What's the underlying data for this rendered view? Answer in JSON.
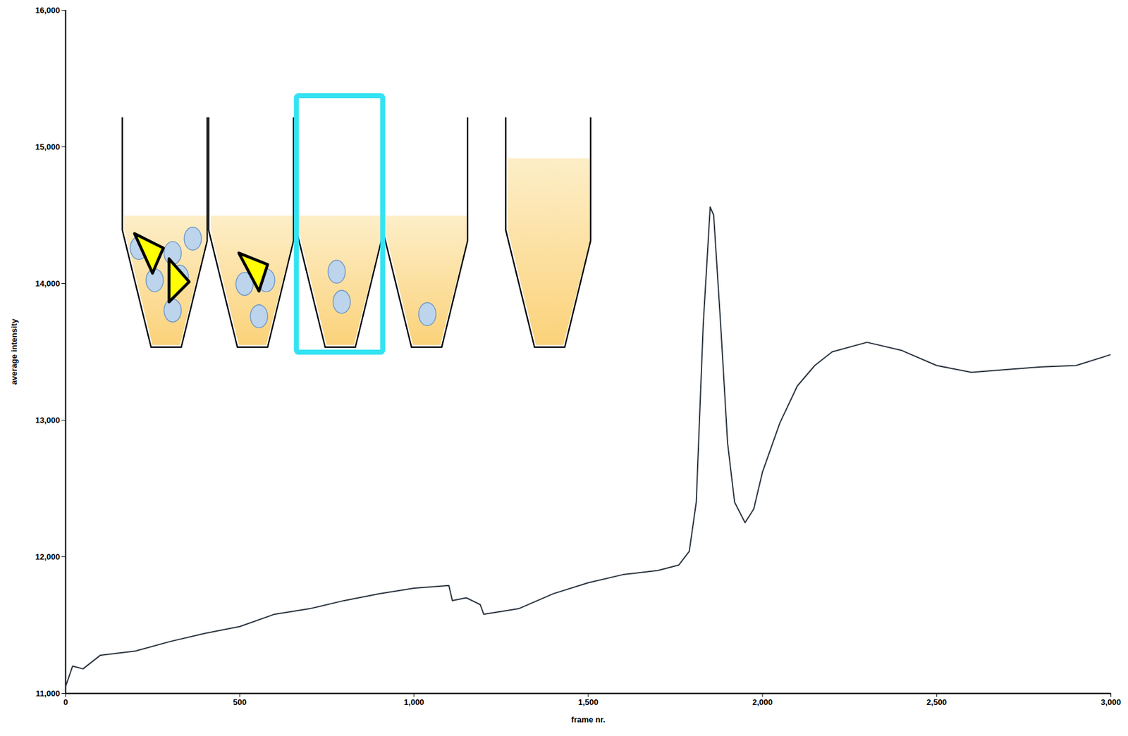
{
  "chart_data": {
    "type": "line",
    "x_label": "frame nr.",
    "y_label": "average intensity",
    "color": "#2b3540",
    "line_style": "solid",
    "grid": false,
    "x": [
      0,
      20,
      50,
      100,
      200,
      300,
      400,
      500,
      600,
      700,
      800,
      900,
      1000,
      1100,
      1110,
      1150,
      1190,
      1200,
      1300,
      1400,
      1500,
      1600,
      1700,
      1760,
      1790,
      1810,
      1830,
      1850,
      1860,
      1880,
      1900,
      1920,
      1950,
      1975,
      2000,
      2050,
      2100,
      2150,
      2200,
      2300,
      2400,
      2500,
      2600,
      2700,
      2800,
      2900,
      3000
    ],
    "values": [
      11050,
      11200,
      11180,
      11280,
      11310,
      11380,
      11440,
      11490,
      11580,
      11620,
      11680,
      11730,
      11770,
      11790,
      11680,
      11700,
      11650,
      11580,
      11620,
      11730,
      11810,
      11870,
      11900,
      11940,
      12040,
      12400,
      13700,
      14560,
      14500,
      13700,
      12830,
      12400,
      12250,
      12350,
      12620,
      12980,
      13250,
      13400,
      13500,
      13570,
      13510,
      13400,
      13350,
      13370,
      13390,
      13400,
      13480
    ],
    "xlim": [
      0,
      3000
    ],
    "xticks": [
      0,
      500,
      {
        "value": 1000,
        "label": "1,000"
      },
      {
        "value": 1500,
        "label": "1,500"
      },
      {
        "value": 2000,
        "label": "2,000"
      },
      {
        "value": 2500,
        "label": "2,500"
      },
      {
        "value": 3000,
        "label": "3,000"
      }
    ],
    "ylim": [
      11000,
      16000
    ],
    "yticks": [
      {
        "value": 11000,
        "label": "11,000"
      },
      {
        "value": 12000,
        "label": "12,000"
      },
      {
        "value": 13000,
        "label": "13,000"
      },
      {
        "value": 14000,
        "label": "14,000"
      },
      {
        "value": 15000,
        "label": "15,000"
      },
      {
        "value": 16000,
        "label": "16,000"
      }
    ]
  }
}
